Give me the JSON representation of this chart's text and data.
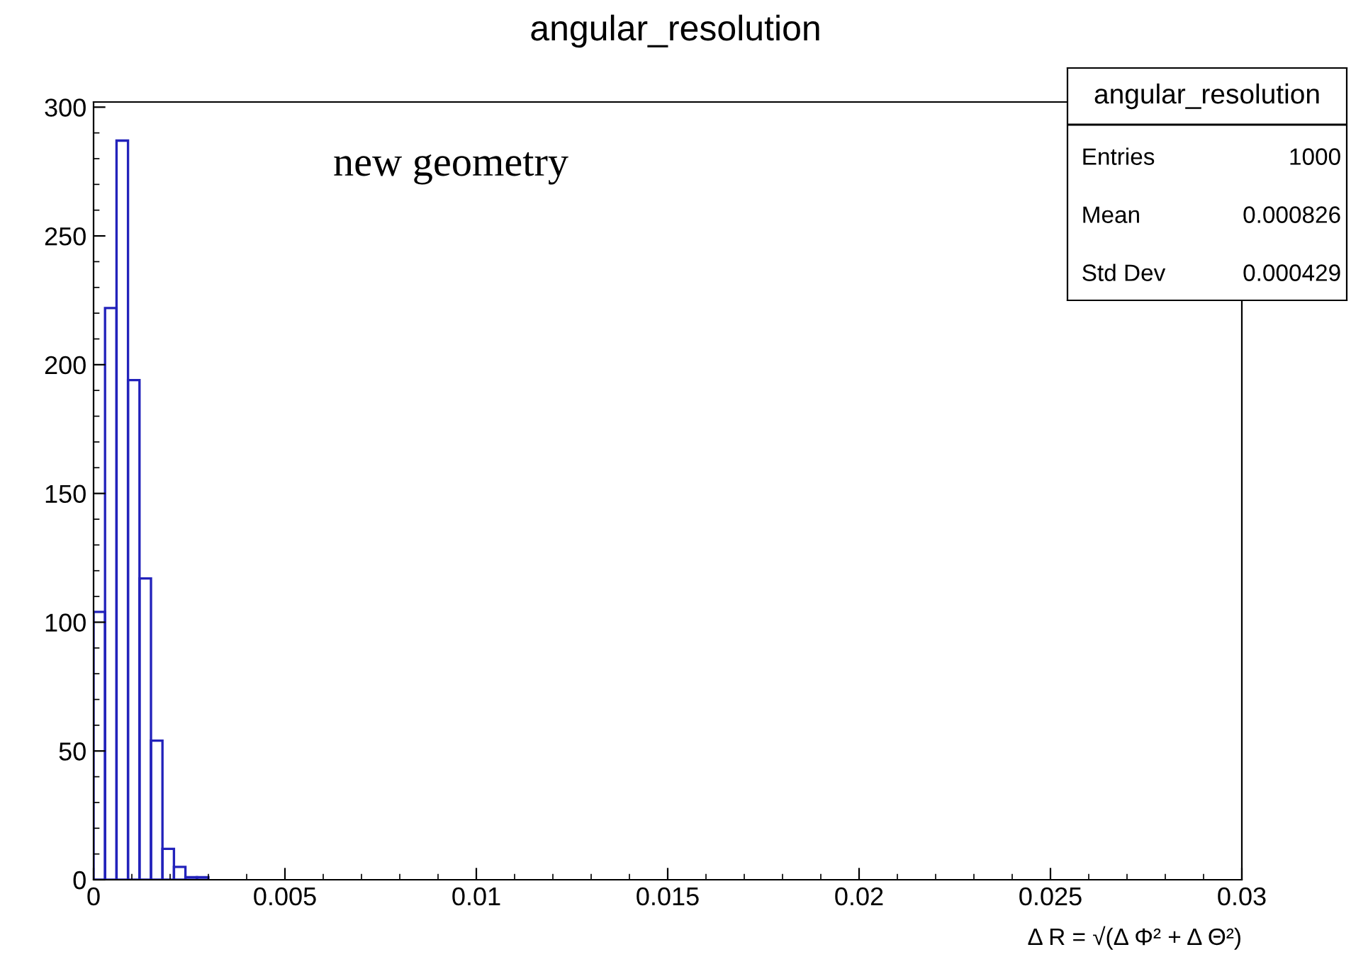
{
  "chart_data": {
    "type": "histogram",
    "title": "angular_resolution",
    "xlabel": "Δ R = √(Δ Φ² + Δ Θ²)",
    "bins": [
      0,
      0.0003,
      0.0006,
      0.0009,
      0.0012,
      0.0015,
      0.0018,
      0.0021,
      0.0024,
      0.0027,
      0.003
    ],
    "values": [
      104,
      222,
      287,
      194,
      117,
      54,
      12,
      5,
      1,
      1
    ],
    "color": "#2222bb",
    "xlim": [
      0,
      0.03
    ],
    "ylim": [
      0,
      302
    ],
    "xticks": [
      0,
      0.005,
      0.01,
      0.015,
      0.02,
      0.025,
      0.03
    ],
    "yticks": [
      0,
      50,
      100,
      150,
      200,
      250,
      300
    ],
    "grid": false,
    "annotations": [
      "new geometry",
      "angular_resolution",
      "Entries",
      "1000",
      "Mean",
      "0.000826",
      "Std Dev",
      "0.000429"
    ]
  }
}
